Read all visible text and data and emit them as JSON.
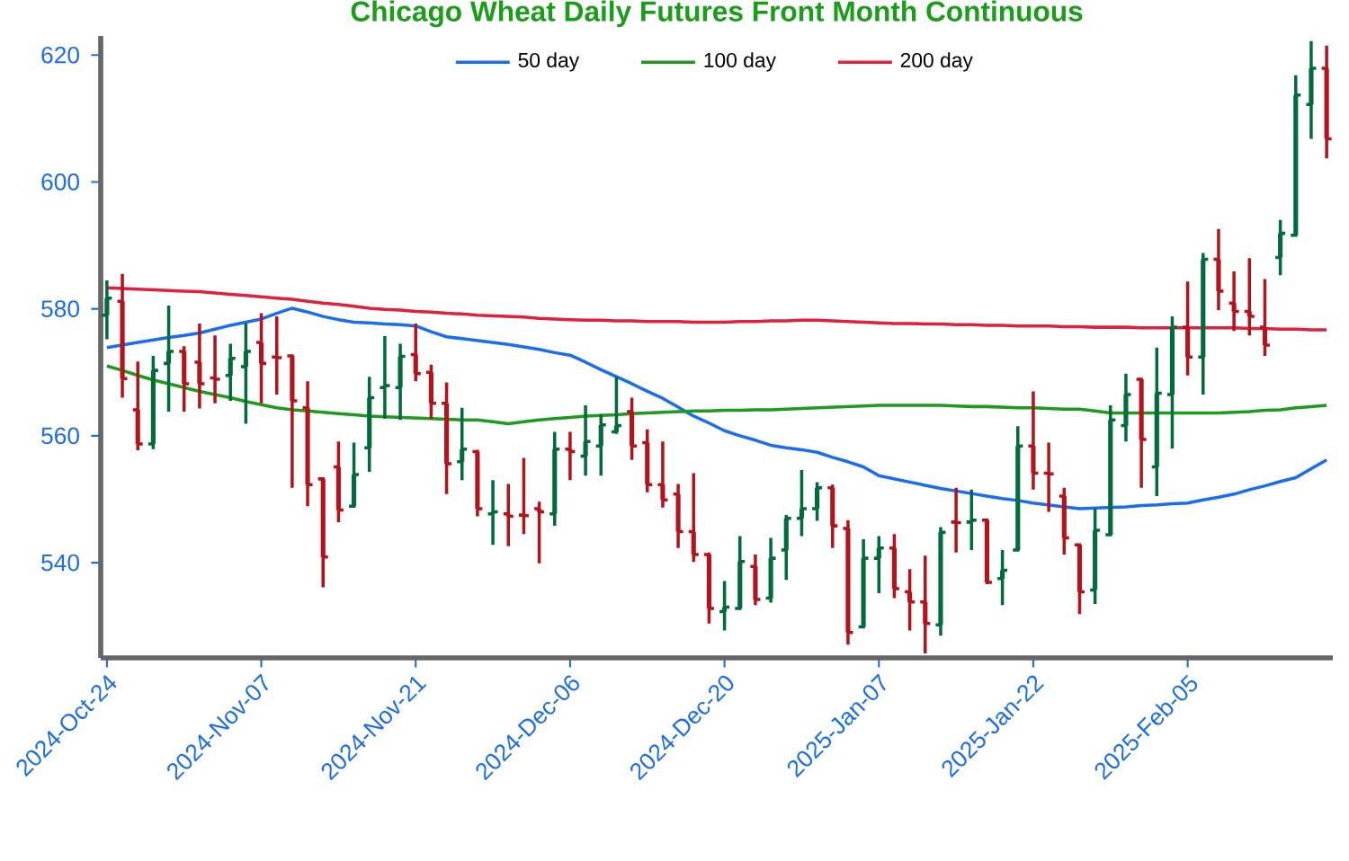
{
  "chart_data": {
    "type": "candlestick",
    "title": "Chicago Wheat Daily Futures Front Month Continuous",
    "categories": [
      "2024-Oct-24",
      null,
      null,
      null,
      null,
      null,
      null,
      null,
      null,
      null,
      "2024-Nov-07",
      null,
      null,
      null,
      null,
      null,
      null,
      null,
      null,
      null,
      "2024-Nov-21",
      null,
      null,
      null,
      null,
      null,
      null,
      null,
      null,
      null,
      "2024-Dec-06",
      null,
      null,
      null,
      null,
      null,
      null,
      null,
      null,
      null,
      "2024-Dec-20",
      null,
      null,
      null,
      null,
      null,
      null,
      null,
      null,
      null,
      "2025-Jan-07",
      null,
      null,
      null,
      null,
      null,
      null,
      null,
      null,
      null,
      "2025-Jan-22",
      null,
      null,
      null,
      null,
      null,
      null,
      null,
      null,
      null,
      "2025-Feb-05",
      null,
      null,
      null,
      null,
      null,
      null,
      null,
      null,
      null
    ],
    "ohlc": [
      [
        579.0,
        584.5,
        575.2,
        581.7
      ],
      [
        581.2,
        585.5,
        566.0,
        569.0
      ],
      [
        564.1,
        571.7,
        557.7,
        558.7
      ],
      [
        558.7,
        572.6,
        557.9,
        570.3
      ],
      [
        571.4,
        580.5,
        563.8,
        573.3
      ],
      [
        573.3,
        574.1,
        563.8,
        568.2
      ],
      [
        571.6,
        577.7,
        564.3,
        568.2
      ],
      [
        569.1,
        575.8,
        565.1,
        568.9
      ],
      [
        569.5,
        574.5,
        565.5,
        572.2
      ],
      [
        570.9,
        577.7,
        561.9,
        573.3
      ],
      [
        574.7,
        579.3,
        565.1,
        571.4
      ],
      [
        572.4,
        578.8,
        566.5,
        572.3
      ],
      [
        572.6,
        572.6,
        551.8,
        565.5
      ],
      [
        564.4,
        568.6,
        548.9,
        552.3
      ],
      [
        553.2,
        553.4,
        536.1,
        540.9
      ],
      [
        555.1,
        559.1,
        546.4,
        548.3
      ],
      [
        548.9,
        558.9,
        548.9,
        553.9
      ],
      [
        558.1,
        569.3,
        554.3,
        566.0
      ],
      [
        567.6,
        575.7,
        562.7,
        567.9
      ],
      [
        567.6,
        574.5,
        562.5,
        572.5
      ],
      [
        572.8,
        577.7,
        568.6,
        569.8
      ],
      [
        570.0,
        571.2,
        562.7,
        565.1
      ],
      [
        565.1,
        568.4,
        550.8,
        555.6
      ],
      [
        555.9,
        564.4,
        553.0,
        557.9
      ],
      [
        557.5,
        557.8,
        547.3,
        548.5
      ],
      [
        547.7,
        553.0,
        542.8,
        548.0
      ],
      [
        547.7,
        552.4,
        542.6,
        547.3
      ],
      [
        547.5,
        556.5,
        544.5,
        547.4
      ],
      [
        548.5,
        549.6,
        539.9,
        548.0
      ],
      [
        547.7,
        560.6,
        545.8,
        557.9
      ],
      [
        557.9,
        560.6,
        553.0,
        557.5
      ],
      [
        556.8,
        564.8,
        553.7,
        559.1
      ],
      [
        558.4,
        563.4,
        553.7,
        561.7
      ],
      [
        560.6,
        569.3,
        560.3,
        561.6
      ],
      [
        563.8,
        566.0,
        556.2,
        558.4
      ],
      [
        558.9,
        561.0,
        551.1,
        552.3
      ],
      [
        552.3,
        559.1,
        548.7,
        549.9
      ],
      [
        550.8,
        552.4,
        542.3,
        544.9
      ],
      [
        544.9,
        554.1,
        540.1,
        541.3
      ],
      [
        541.3,
        541.6,
        530.4,
        532.8
      ],
      [
        532.3,
        537.1,
        529.3,
        533.0
      ],
      [
        532.8,
        544.2,
        532.8,
        540.2
      ],
      [
        539.4,
        541.3,
        533.3,
        534.2
      ],
      [
        534.4,
        543.9,
        533.7,
        540.7
      ],
      [
        542.0,
        547.5,
        537.3,
        547.0
      ],
      [
        547.0,
        554.6,
        544.2,
        548.5
      ],
      [
        548.5,
        552.7,
        546.6,
        551.8
      ],
      [
        551.8,
        552.3,
        542.3,
        545.8
      ],
      [
        545.4,
        546.7,
        527.1,
        529.0
      ],
      [
        529.9,
        543.7,
        529.9,
        540.7
      ],
      [
        540.7,
        544.2,
        535.2,
        542.3
      ],
      [
        542.3,
        544.5,
        534.4,
        535.9
      ],
      [
        535.4,
        539.0,
        529.3,
        533.8
      ],
      [
        533.8,
        541.1,
        525.7,
        530.4
      ],
      [
        530.2,
        545.6,
        528.5,
        544.8
      ],
      [
        546.4,
        551.8,
        541.6,
        546.3
      ],
      [
        546.4,
        551.5,
        542.0,
        546.7
      ],
      [
        546.7,
        546.7,
        536.6,
        536.9
      ],
      [
        537.5,
        542.0,
        533.3,
        538.8
      ],
      [
        542.0,
        561.5,
        542.0,
        558.4
      ],
      [
        558.4,
        567.0,
        551.5,
        554.1
      ],
      [
        554.1,
        558.9,
        548.0,
        554.0
      ],
      [
        550.5,
        551.8,
        541.3,
        543.9
      ],
      [
        542.8,
        542.8,
        531.9,
        535.4
      ],
      [
        535.7,
        548.5,
        533.5,
        545.1
      ],
      [
        544.4,
        564.8,
        544.4,
        562.5
      ],
      [
        561.6,
        569.8,
        559.1,
        566.5
      ],
      [
        568.9,
        569.1,
        551.8,
        559.4
      ],
      [
        555.1,
        573.9,
        550.5,
        566.7
      ],
      [
        566.5,
        578.8,
        558.0,
        577.1
      ],
      [
        577.1,
        584.3,
        569.5,
        572.4
      ],
      [
        572.4,
        588.8,
        566.5,
        587.8
      ],
      [
        587.8,
        592.6,
        579.8,
        582.8
      ],
      [
        580.9,
        585.9,
        576.5,
        579.6
      ],
      [
        579.6,
        588.0,
        575.8,
        578.8
      ],
      [
        577.1,
        584.7,
        572.6,
        574.3
      ],
      [
        588.1,
        594.0,
        585.3,
        591.9
      ],
      [
        591.6,
        616.8,
        591.6,
        613.7
      ],
      [
        612.2,
        622.2,
        606.8,
        617.9
      ],
      [
        617.9,
        621.5,
        603.7,
        606.8
      ]
    ],
    "colors": [
      "#006b3c",
      "#b5121b",
      "#b5121b",
      "#006b3c",
      "#006b3c",
      "#b5121b",
      "#b5121b",
      "#b5121b",
      "#006b3c",
      "#006b3c",
      "#b5121b",
      "#b5121b",
      "#b5121b",
      "#b5121b",
      "#b5121b",
      "#b5121b",
      "#006b3c",
      "#006b3c",
      "#006b3c",
      "#006b3c",
      "#b5121b",
      "#b5121b",
      "#b5121b",
      "#006b3c",
      "#b5121b",
      "#006b3c",
      "#b5121b",
      "#b5121b",
      "#b5121b",
      "#006b3c",
      "#b5121b",
      "#006b3c",
      "#006b3c",
      "#006b3c",
      "#b5121b",
      "#b5121b",
      "#b5121b",
      "#b5121b",
      "#b5121b",
      "#b5121b",
      "#006b3c",
      "#006b3c",
      "#b5121b",
      "#006b3c",
      "#006b3c",
      "#006b3c",
      "#006b3c",
      "#b5121b",
      "#b5121b",
      "#006b3c",
      "#006b3c",
      "#b5121b",
      "#b5121b",
      "#b5121b",
      "#006b3c",
      "#b5121b",
      "#006b3c",
      "#b5121b",
      "#006b3c",
      "#006b3c",
      "#b5121b",
      "#b5121b",
      "#b5121b",
      "#b5121b",
      "#006b3c",
      "#006b3c",
      "#006b3c",
      "#b5121b",
      "#006b3c",
      "#006b3c",
      "#b5121b",
      "#006b3c",
      "#b5121b",
      "#b5121b",
      "#b5121b",
      "#b5121b",
      "#006b3c",
      "#006b3c",
      "#006b3c",
      "#b5121b"
    ],
    "series": [
      {
        "name": "50 day",
        "type": "line",
        "color": "#1a6cf0",
        "values": [
          573.9,
          574.3,
          574.7,
          575.1,
          575.5,
          575.8,
          576.2,
          576.8,
          577.4,
          577.9,
          578.4,
          579.3,
          580.1,
          579.5,
          578.8,
          578.3,
          577.9,
          577.8,
          577.6,
          577.5,
          577.3,
          576.4,
          575.6,
          575.3,
          575.0,
          574.7,
          574.4,
          574.0,
          573.6,
          573.1,
          572.7,
          571.6,
          570.4,
          569.3,
          568.2,
          567.0,
          565.9,
          564.5,
          563.1,
          562.0,
          560.8,
          560.0,
          559.3,
          558.5,
          558.1,
          557.8,
          557.4,
          556.6,
          555.9,
          555.1,
          553.7,
          553.2,
          552.7,
          552.2,
          551.7,
          551.3,
          550.9,
          550.5,
          550.1,
          549.8,
          549.4,
          549.1,
          548.8,
          548.5,
          548.6,
          548.7,
          548.8,
          549.0,
          549.1,
          549.3,
          549.4,
          549.9,
          550.3,
          550.8,
          551.5,
          552.1,
          552.8,
          553.4,
          554.8,
          556.2
        ]
      },
      {
        "name": "100 day",
        "type": "line",
        "color": "#1e9a1e",
        "values": [
          571.0,
          570.3,
          569.5,
          568.8,
          568.2,
          567.6,
          567.0,
          566.5,
          566.0,
          565.4,
          564.9,
          564.4,
          564.1,
          563.9,
          563.7,
          563.5,
          563.3,
          563.1,
          563.0,
          562.9,
          562.8,
          562.7,
          562.6,
          562.5,
          562.5,
          562.2,
          561.9,
          562.2,
          562.5,
          562.7,
          562.9,
          563.1,
          563.2,
          563.3,
          563.5,
          563.6,
          563.7,
          563.8,
          563.9,
          563.9,
          564.0,
          564.0,
          564.1,
          564.1,
          564.2,
          564.3,
          564.4,
          564.5,
          564.6,
          564.7,
          564.8,
          564.8,
          564.8,
          564.8,
          564.8,
          564.7,
          564.6,
          564.6,
          564.5,
          564.4,
          564.4,
          564.3,
          564.2,
          564.2,
          563.9,
          563.6,
          563.6,
          563.6,
          563.6,
          563.6,
          563.6,
          563.6,
          563.6,
          563.7,
          563.8,
          564.0,
          564.1,
          564.4,
          564.6,
          564.8
        ]
      },
      {
        "name": "200 day",
        "type": "line",
        "color": "#e0203c",
        "values": [
          583.3,
          583.2,
          583.1,
          583.0,
          582.9,
          582.8,
          582.7,
          582.5,
          582.3,
          582.1,
          581.9,
          581.7,
          581.5,
          581.2,
          580.9,
          580.7,
          580.4,
          580.1,
          579.9,
          579.8,
          579.6,
          579.5,
          579.3,
          579.2,
          579.0,
          578.9,
          578.8,
          578.7,
          578.5,
          578.4,
          578.3,
          578.2,
          578.2,
          578.1,
          578.1,
          578.0,
          578.0,
          578.0,
          577.9,
          577.9,
          577.9,
          578.0,
          578.0,
          578.1,
          578.1,
          578.2,
          578.2,
          578.1,
          578.0,
          577.9,
          577.8,
          577.7,
          577.7,
          577.6,
          577.6,
          577.5,
          577.5,
          577.4,
          577.4,
          577.3,
          577.3,
          577.3,
          577.2,
          577.2,
          577.1,
          577.1,
          577.1,
          577.0,
          577.0,
          577.0,
          577.0,
          577.0,
          577.0,
          577.0,
          576.9,
          576.9,
          576.8,
          576.8,
          576.7,
          576.7
        ]
      }
    ],
    "ylim": [
      525,
      623
    ],
    "yticks": [
      540,
      560,
      580,
      600,
      620
    ],
    "legend": "top"
  }
}
